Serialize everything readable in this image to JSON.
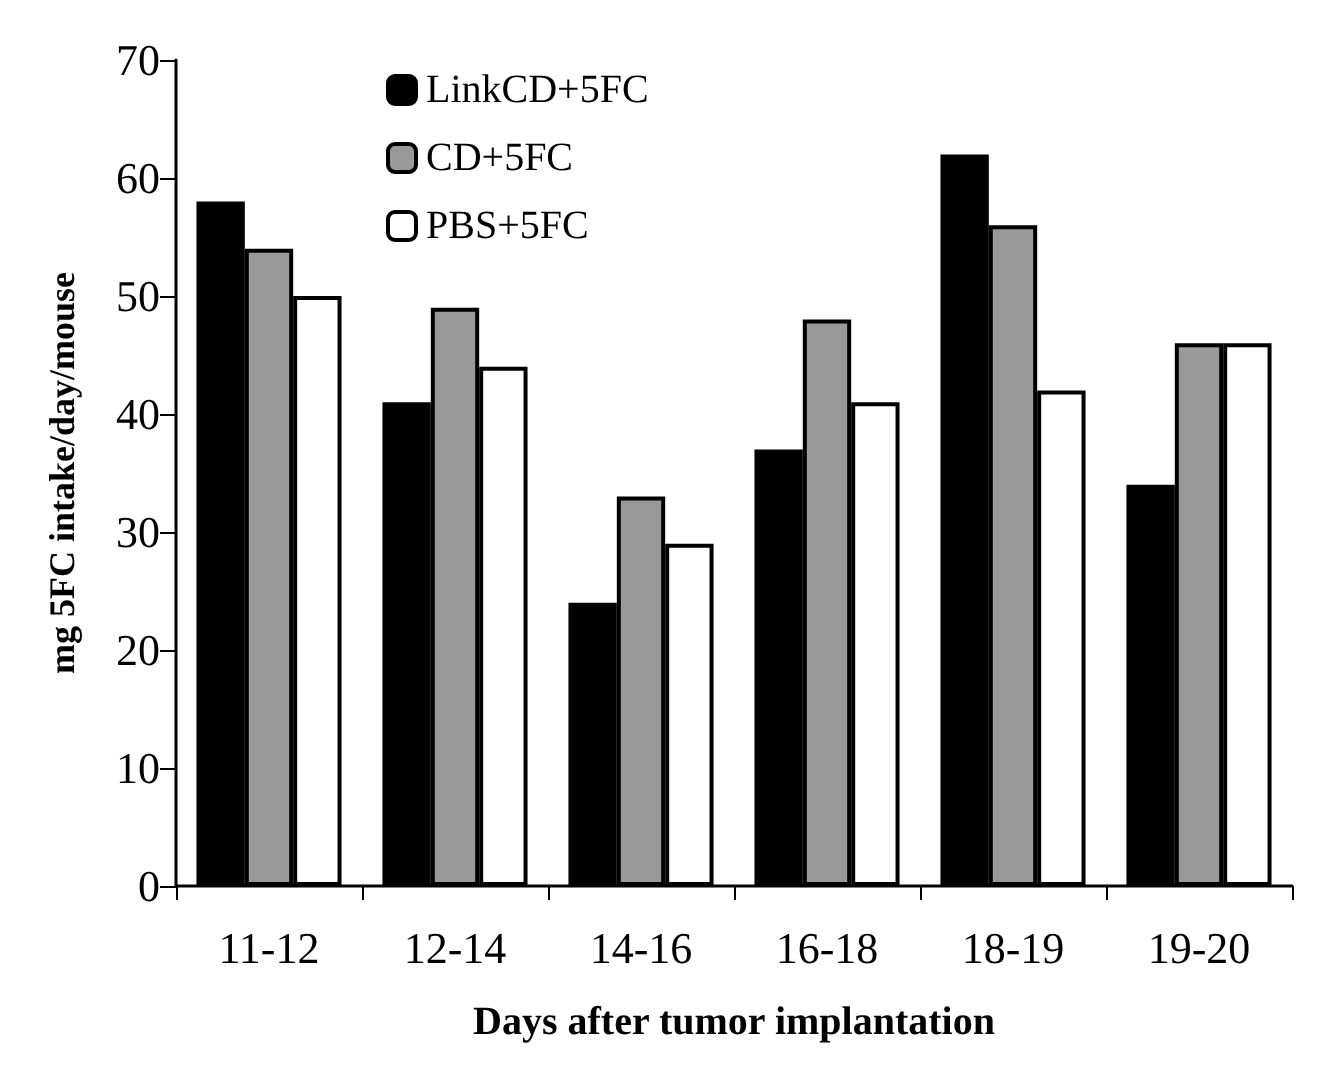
{
  "chart_data": {
    "type": "bar",
    "xlabel": "Days after tumor implantation",
    "ylabel": "mg 5FC intake/day/mouse",
    "categories": [
      "11-12",
      "12-14",
      "14-16",
      "16-18",
      "18-19",
      "19-20"
    ],
    "series": [
      {
        "name": "LinkCD+5FC",
        "color": "#000000",
        "values": [
          58,
          41,
          24,
          37,
          62,
          34
        ]
      },
      {
        "name": "CD+5FC",
        "color": "#999999",
        "values": [
          54,
          49,
          33,
          48,
          56,
          46
        ]
      },
      {
        "name": "PBS+5FC",
        "color": "#ffffff",
        "values": [
          50,
          44,
          29,
          41,
          42,
          46
        ]
      }
    ],
    "ylim": [
      0,
      70
    ],
    "yticks": [
      0,
      10,
      20,
      30,
      40,
      50,
      60,
      70
    ],
    "grid": false,
    "legend": "top left"
  }
}
